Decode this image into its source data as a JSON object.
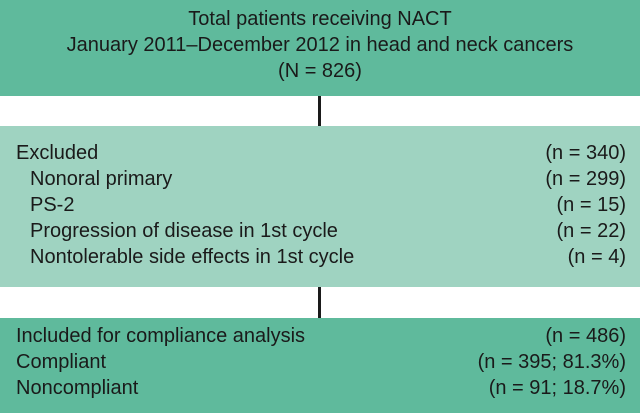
{
  "top_box": {
    "line1": "Total patients receiving NACT",
    "line2": "January 2011–December 2012 in head and neck cancers",
    "line3": "(N = 826)"
  },
  "excluded_box": {
    "header": {
      "label": "Excluded",
      "count": "(n = 340)"
    },
    "items": [
      {
        "label": "Nonoral primary",
        "count": "(n = 299)"
      },
      {
        "label": "PS-2",
        "count": "(n = 15)"
      },
      {
        "label": "Progression of disease in 1st cycle",
        "count": "(n = 22)"
      },
      {
        "label": "Nontolerable side effects in 1st cycle",
        "count": "(n = 4)"
      }
    ]
  },
  "included_box": {
    "items": [
      {
        "label": "Included for compliance analysis",
        "count": "(n = 486)"
      },
      {
        "label": "Compliant",
        "count": "(n = 395; 81.3%)"
      },
      {
        "label": "Noncompliant",
        "count": "(n = 91; 18.7%)"
      }
    ]
  },
  "colors": {
    "dark_box": "#5fba9c",
    "light_box": "#9fd3c1",
    "connector": "#1a1a1a"
  }
}
